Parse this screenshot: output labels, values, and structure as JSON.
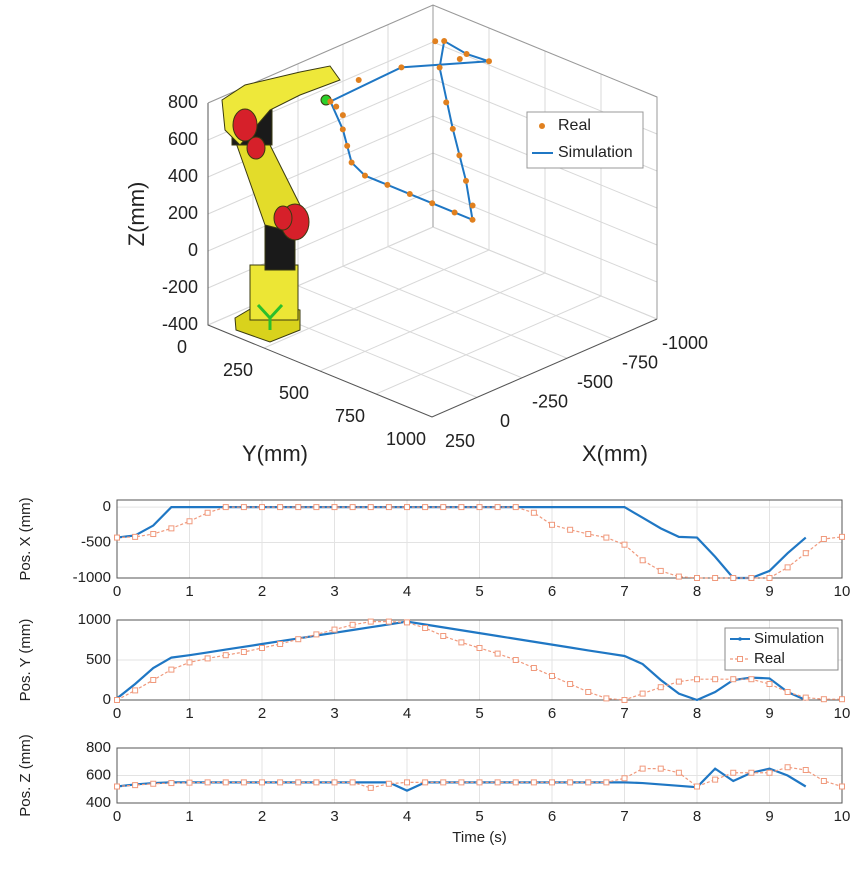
{
  "chart_data": [
    {
      "type": "scatter3d",
      "xlabel": "X(mm)",
      "ylabel": "Y(mm)",
      "zlabel": "Z(mm)",
      "xlim": [
        -1000,
        250
      ],
      "ylim": [
        0,
        1000
      ],
      "zlim": [
        -400,
        800
      ],
      "xticks": [
        -1000,
        -750,
        -500,
        -250,
        0,
        250
      ],
      "yticks": [
        0,
        250,
        500,
        750,
        1000
      ],
      "zticks": [
        -400,
        -200,
        0,
        200,
        400,
        600,
        800
      ],
      "grid": true,
      "legend": "right",
      "series": [
        {
          "name": "Real",
          "color": "#e0801f",
          "marker": "dot",
          "x": [
            -430,
            -400,
            -350,
            -250,
            -150,
            -50,
            0,
            0,
            0,
            0,
            0,
            0,
            -100,
            -250,
            -400,
            -550,
            -700,
            -850,
            -950,
            -1000,
            -1000,
            -1000,
            -900,
            -700,
            -550,
            -430
          ],
          "y": [
            0,
            50,
            120,
            200,
            300,
            400,
            500,
            600,
            700,
            800,
            900,
            980,
            900,
            750,
            600,
            450,
            300,
            150,
            50,
            50,
            150,
            250,
            200,
            100,
            30,
            0
          ],
          "z": [
            520,
            530,
            540,
            545,
            548,
            550,
            550,
            550,
            550,
            550,
            550,
            550,
            545,
            540,
            540,
            545,
            550,
            600,
            650,
            630,
            610,
            620,
            650,
            640,
            600,
            520
          ]
        },
        {
          "name": "Simulation",
          "color": "#1f77c4",
          "marker": "line",
          "x": [
            -430,
            -250,
            -50,
            0,
            0,
            0,
            0,
            -250,
            -550,
            -850,
            -1000,
            -1000,
            -1000,
            -700,
            -430
          ],
          "y": [
            0,
            200,
            400,
            500,
            700,
            900,
            980,
            750,
            450,
            150,
            50,
            150,
            250,
            100,
            0
          ],
          "z": [
            520,
            545,
            550,
            550,
            550,
            550,
            550,
            540,
            545,
            600,
            630,
            610,
            620,
            640,
            520
          ]
        }
      ]
    },
    {
      "type": "line",
      "ylabel": "Pos. X (mm)",
      "xlim": [
        0,
        10
      ],
      "ylim": [
        -1000,
        100
      ],
      "xticks": [
        0,
        1,
        2,
        3,
        4,
        5,
        6,
        7,
        8,
        9,
        10
      ],
      "yticks": [
        -1000,
        -500,
        0
      ],
      "grid": true,
      "x": [
        0,
        0.25,
        0.5,
        0.75,
        1,
        1.25,
        1.5,
        1.75,
        2,
        2.25,
        2.5,
        2.75,
        3,
        3.25,
        3.5,
        3.75,
        4,
        4.25,
        4.5,
        4.75,
        5,
        5.25,
        5.5,
        5.75,
        6,
        6.25,
        6.5,
        6.75,
        7,
        7.25,
        7.5,
        7.75,
        8,
        8.25,
        8.5,
        8.75,
        9,
        9.25,
        9.5,
        9.75,
        10
      ],
      "series": [
        {
          "name": "Simulation",
          "color": "#1f77c4",
          "values": [
            -430,
            -400,
            -260,
            0,
            0,
            0,
            0,
            0,
            0,
            0,
            0,
            0,
            0,
            0,
            0,
            0,
            0,
            0,
            0,
            0,
            0,
            0,
            0,
            0,
            0,
            0,
            0,
            0,
            0,
            -150,
            -300,
            -420,
            -430,
            -700,
            -1000,
            -1000,
            -900,
            -650,
            -430,
            null,
            null
          ]
        },
        {
          "name": "Real",
          "color": "#f0997c",
          "values": [
            -430,
            -420,
            -380,
            -300,
            -200,
            -80,
            0,
            0,
            0,
            0,
            0,
            0,
            0,
            0,
            0,
            0,
            0,
            0,
            0,
            0,
            0,
            0,
            0,
            -80,
            -250,
            -320,
            -380,
            -430,
            -530,
            -750,
            -900,
            -980,
            -1000,
            -1000,
            -1000,
            -1000,
            -1000,
            -850,
            -650,
            -450,
            -420
          ]
        }
      ]
    },
    {
      "type": "line",
      "ylabel": "Pos. Y (mm)",
      "xlim": [
        0,
        10
      ],
      "ylim": [
        0,
        1000
      ],
      "xticks": [
        0,
        1,
        2,
        3,
        4,
        5,
        6,
        7,
        8,
        9,
        10
      ],
      "yticks": [
        0,
        500,
        1000
      ],
      "grid": true,
      "legend": "upper right",
      "x": [
        0,
        0.25,
        0.5,
        0.75,
        1,
        1.25,
        1.5,
        1.75,
        2,
        2.25,
        2.5,
        2.75,
        3,
        3.25,
        3.5,
        3.75,
        4,
        4.25,
        4.5,
        4.75,
        5,
        5.25,
        5.5,
        5.75,
        6,
        6.25,
        6.5,
        6.75,
        7,
        7.25,
        7.5,
        7.75,
        8,
        8.25,
        8.5,
        8.75,
        9,
        9.25,
        9.5,
        9.75,
        10
      ],
      "series": [
        {
          "name": "Simulation",
          "color": "#1f77c4",
          "values": [
            20,
            200,
            400,
            530,
            560,
            595,
            630,
            665,
            700,
            735,
            770,
            805,
            840,
            875,
            910,
            945,
            980,
            944,
            908,
            872,
            836,
            800,
            764,
            728,
            692,
            656,
            620,
            585,
            550,
            450,
            250,
            80,
            0,
            100,
            250,
            280,
            270,
            100,
            0,
            null,
            null
          ]
        },
        {
          "name": "Real",
          "color": "#f0997c",
          "values": [
            0,
            120,
            250,
            380,
            470,
            520,
            560,
            600,
            650,
            700,
            760,
            820,
            880,
            940,
            980,
            980,
            970,
            900,
            800,
            720,
            650,
            580,
            500,
            400,
            300,
            200,
            100,
            20,
            0,
            80,
            160,
            230,
            260,
            260,
            260,
            260,
            200,
            100,
            30,
            10,
            10
          ]
        }
      ]
    },
    {
      "type": "line",
      "ylabel": "Pos. Z (mm)",
      "xlabel": "Time (s)",
      "xlim": [
        0,
        10
      ],
      "ylim": [
        400,
        800
      ],
      "xticks": [
        0,
        1,
        2,
        3,
        4,
        5,
        6,
        7,
        8,
        9,
        10
      ],
      "yticks": [
        400,
        600,
        800
      ],
      "grid": true,
      "x": [
        0,
        0.25,
        0.5,
        0.75,
        1,
        1.25,
        1.5,
        1.75,
        2,
        2.25,
        2.5,
        2.75,
        3,
        3.25,
        3.5,
        3.75,
        4,
        4.25,
        4.5,
        4.75,
        5,
        5.25,
        5.5,
        5.75,
        6,
        6.25,
        6.5,
        6.75,
        7,
        7.25,
        7.5,
        7.75,
        8,
        8.25,
        8.5,
        8.75,
        9,
        9.25,
        9.5,
        9.75,
        10
      ],
      "series": [
        {
          "name": "Simulation",
          "color": "#1f77c4",
          "values": [
            520,
            535,
            545,
            550,
            550,
            550,
            550,
            550,
            550,
            550,
            550,
            550,
            550,
            550,
            550,
            550,
            490,
            550,
            550,
            550,
            550,
            550,
            550,
            550,
            550,
            550,
            550,
            550,
            550,
            545,
            535,
            525,
            515,
            650,
            560,
            620,
            650,
            600,
            520,
            null,
            null
          ]
        },
        {
          "name": "Real",
          "color": "#f0997c",
          "values": [
            520,
            530,
            540,
            545,
            548,
            550,
            550,
            550,
            550,
            550,
            550,
            550,
            550,
            550,
            510,
            540,
            550,
            550,
            550,
            550,
            550,
            550,
            550,
            550,
            550,
            550,
            550,
            550,
            580,
            650,
            650,
            620,
            520,
            570,
            620,
            620,
            620,
            660,
            640,
            560,
            520
          ]
        }
      ]
    }
  ]
}
